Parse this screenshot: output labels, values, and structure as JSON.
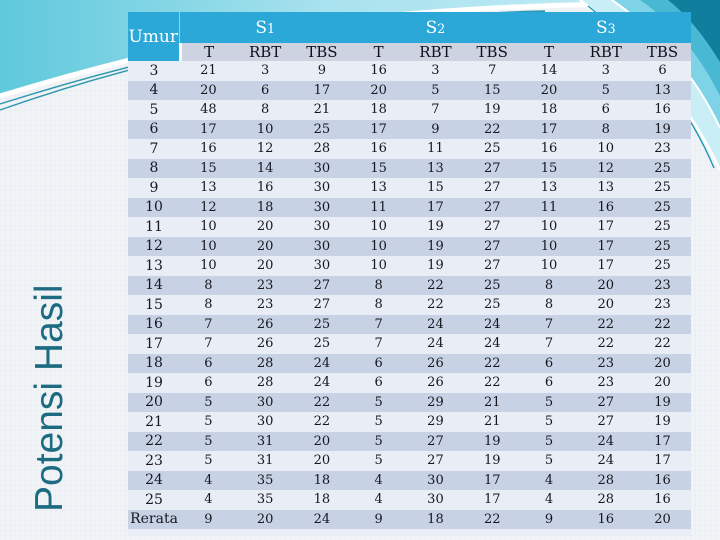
{
  "slide": {
    "vertical_title": "Potensi Hasil"
  },
  "colors": {
    "header_cyan": "#2ba8d7",
    "subheader_gray": "#cdd3e1",
    "row_light": "#e9edf5",
    "row_dark": "#c7d2e4",
    "title_teal": "#1d6b80",
    "band_teal": "#5fc9dc",
    "stripe_dark_teal": "#107f9e"
  },
  "table": {
    "corner_header": "Umur",
    "groups": [
      {
        "letter": "S",
        "num": "1"
      },
      {
        "letter": "S",
        "num": "2"
      },
      {
        "letter": "S",
        "num": "3"
      }
    ],
    "sub_headers": [
      "T",
      "RBT",
      "TBS"
    ],
    "rows": [
      {
        "umur": "3",
        "values": [
          21,
          3,
          9,
          16,
          3,
          7,
          14,
          3,
          6
        ]
      },
      {
        "umur": "4",
        "values": [
          20,
          6,
          17,
          20,
          5,
          15,
          20,
          5,
          13
        ]
      },
      {
        "umur": "5",
        "values": [
          48,
          8,
          21,
          18,
          7,
          19,
          18,
          6,
          16
        ]
      },
      {
        "umur": "6",
        "values": [
          17,
          10,
          25,
          17,
          9,
          22,
          17,
          8,
          19
        ]
      },
      {
        "umur": "7",
        "values": [
          16,
          12,
          28,
          16,
          11,
          25,
          16,
          10,
          23
        ]
      },
      {
        "umur": "8",
        "values": [
          15,
          14,
          30,
          15,
          13,
          27,
          15,
          12,
          25
        ]
      },
      {
        "umur": "9",
        "values": [
          13,
          16,
          30,
          13,
          15,
          27,
          13,
          13,
          25
        ]
      },
      {
        "umur": "10",
        "values": [
          12,
          18,
          30,
          11,
          17,
          27,
          11,
          16,
          25
        ]
      },
      {
        "umur": "11",
        "values": [
          10,
          20,
          30,
          10,
          19,
          27,
          10,
          17,
          25
        ]
      },
      {
        "umur": "12",
        "values": [
          10,
          20,
          30,
          10,
          19,
          27,
          10,
          17,
          25
        ]
      },
      {
        "umur": "13",
        "values": [
          10,
          20,
          30,
          10,
          19,
          27,
          10,
          17,
          25
        ]
      },
      {
        "umur": "14",
        "values": [
          8,
          23,
          27,
          8,
          22,
          25,
          8,
          20,
          23
        ]
      },
      {
        "umur": "15",
        "values": [
          8,
          23,
          27,
          8,
          22,
          25,
          8,
          20,
          23
        ]
      },
      {
        "umur": "16",
        "values": [
          7,
          26,
          25,
          7,
          24,
          24,
          7,
          22,
          22
        ]
      },
      {
        "umur": "17",
        "values": [
          7,
          26,
          25,
          7,
          24,
          24,
          7,
          22,
          22
        ]
      },
      {
        "umur": "18",
        "values": [
          6,
          28,
          24,
          6,
          26,
          22,
          6,
          23,
          20
        ]
      },
      {
        "umur": "19",
        "values": [
          6,
          28,
          24,
          6,
          26,
          22,
          6,
          23,
          20
        ]
      },
      {
        "umur": "20",
        "values": [
          5,
          30,
          22,
          5,
          29,
          21,
          5,
          27,
          19
        ]
      },
      {
        "umur": "21",
        "values": [
          5,
          30,
          22,
          5,
          29,
          21,
          5,
          27,
          19
        ]
      },
      {
        "umur": "22",
        "values": [
          5,
          31,
          20,
          5,
          27,
          19,
          5,
          24,
          17
        ]
      },
      {
        "umur": "23",
        "values": [
          5,
          31,
          20,
          5,
          27,
          19,
          5,
          24,
          17
        ]
      },
      {
        "umur": "24",
        "values": [
          4,
          35,
          18,
          4,
          30,
          17,
          4,
          28,
          16
        ]
      },
      {
        "umur": "25",
        "values": [
          4,
          35,
          18,
          4,
          30,
          17,
          4,
          28,
          16
        ]
      },
      {
        "umur": "Rerata",
        "values": [
          9,
          20,
          24,
          9,
          18,
          22,
          9,
          16,
          20
        ]
      }
    ]
  }
}
